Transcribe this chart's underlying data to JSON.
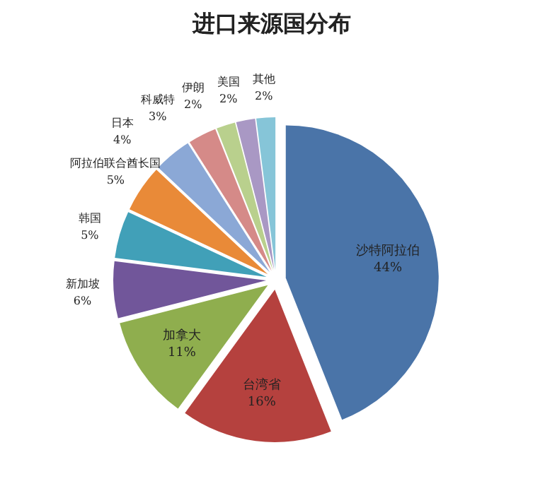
{
  "chart_data": {
    "type": "pie",
    "title": "进口来源国分布",
    "categories": [
      "沙特阿拉伯",
      "台湾省",
      "加拿大",
      "新加坡",
      "韩国",
      "阿拉伯联合酋长国",
      "日本",
      "科威特",
      "伊朗",
      "美国",
      "其他"
    ],
    "values": [
      44,
      16,
      11,
      6,
      5,
      5,
      4,
      3,
      2,
      2,
      2
    ],
    "value_labels": [
      "44%",
      "16%",
      "11%",
      "6%",
      "5%",
      "5%",
      "4%",
      "3%",
      "2%",
      "2%",
      "2%"
    ],
    "colors": [
      "#4a74a8",
      "#b5413e",
      "#8fae4e",
      "#71569a",
      "#41a0b8",
      "#e98a38",
      "#8ba8d6",
      "#d58a88",
      "#b9d08d",
      "#a998c4",
      "#86c5d8"
    ]
  }
}
